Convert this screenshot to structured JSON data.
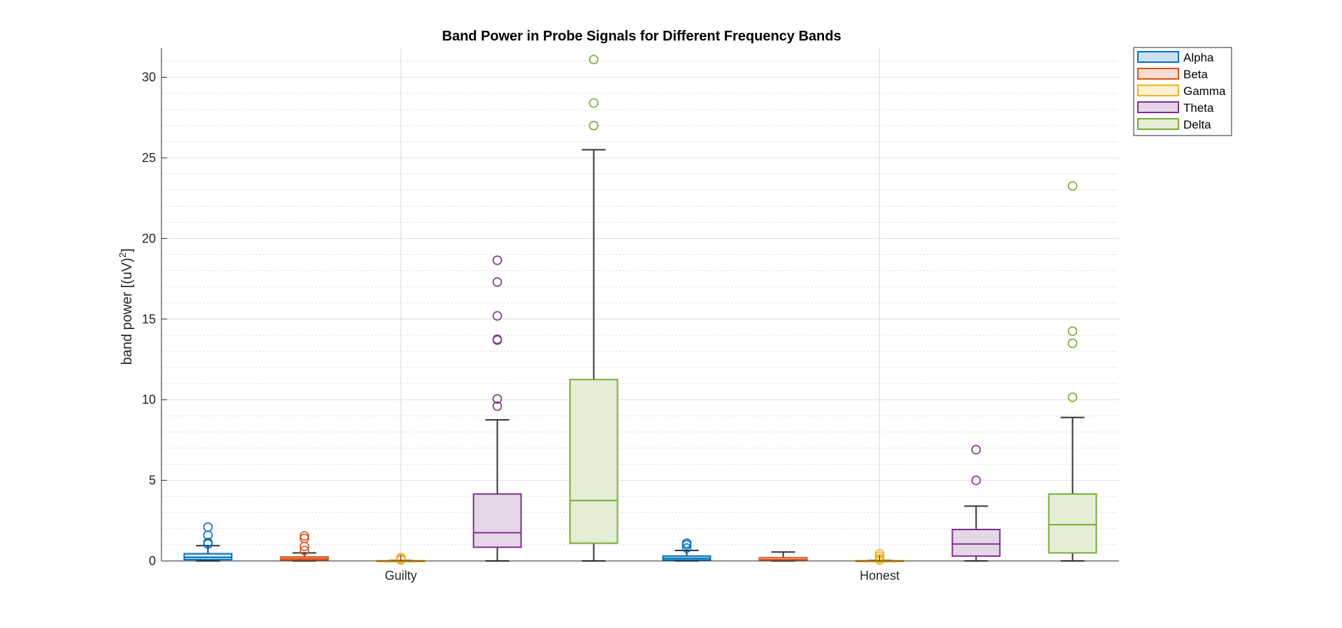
{
  "chart_data": {
    "type": "box",
    "title": "Band Power in Probe Signals for Different Frequency Bands",
    "xlabel": "",
    "ylabel": "band power [(uV)",
    "ylabel_superscript": "2",
    "ylabel_suffix": "]",
    "ylim": [
      0,
      31.8
    ],
    "yticks": [
      0,
      5,
      10,
      15,
      20,
      25,
      30
    ],
    "grid": true,
    "minor_grid": true,
    "legend_position": "top-right-outside",
    "groups": [
      "Guilty",
      "Honest"
    ],
    "series": [
      {
        "name": "Alpha",
        "color": "#0072BD",
        "fill": "#CCE0F1",
        "boxes": [
          {
            "group": "Guilty",
            "whisker_low": 0.0,
            "q1": 0.08,
            "median": 0.22,
            "q3": 0.45,
            "whisker_high": 0.95,
            "outliers": [
              1.05,
              1.15,
              1.6,
              2.1
            ]
          },
          {
            "group": "Honest",
            "whisker_low": 0.0,
            "q1": 0.06,
            "median": 0.16,
            "q3": 0.3,
            "whisker_high": 0.65,
            "outliers": [
              0.8,
              1.0,
              1.1
            ]
          }
        ]
      },
      {
        "name": "Beta",
        "color": "#D95319",
        "fill": "#F7DCD0",
        "boxes": [
          {
            "group": "Guilty",
            "whisker_low": 0.0,
            "q1": 0.06,
            "median": 0.14,
            "q3": 0.25,
            "whisker_high": 0.5,
            "outliers": [
              0.65,
              0.9,
              1.4,
              1.55
            ]
          },
          {
            "group": "Honest",
            "whisker_low": 0.0,
            "q1": 0.03,
            "median": 0.08,
            "q3": 0.2,
            "whisker_high": 0.55,
            "outliers": []
          }
        ]
      },
      {
        "name": "Gamma",
        "color": "#EDB120",
        "fill": "#FBEFD2",
        "boxes": [
          {
            "group": "Guilty",
            "whisker_low": 0.0,
            "q1": 0.0,
            "median": 0.01,
            "q3": 0.02,
            "whisker_high": 0.04,
            "outliers": [
              0.05,
              0.1,
              0.15,
              0.2
            ]
          },
          {
            "group": "Honest",
            "whisker_low": 0.0,
            "q1": 0.0,
            "median": 0.01,
            "q3": 0.02,
            "whisker_high": 0.04,
            "outliers": [
              0.05,
              0.15,
              0.3,
              0.45
            ]
          }
        ]
      },
      {
        "name": "Theta",
        "color": "#7E2F8E",
        "fill": "#E5D5E8",
        "boxes": [
          {
            "group": "Guilty",
            "whisker_low": 0.0,
            "q1": 0.85,
            "median": 1.75,
            "q3": 4.15,
            "whisker_high": 8.75,
            "outliers": [
              9.6,
              10.05,
              13.7,
              13.75,
              15.2,
              17.3,
              18.65
            ]
          },
          {
            "group": "Honest",
            "whisker_low": 0.0,
            "q1": 0.3,
            "median": 1.05,
            "q3": 1.95,
            "whisker_high": 3.4,
            "outliers": [
              5.0,
              6.9
            ]
          }
        ]
      },
      {
        "name": "Delta",
        "color": "#77AC30",
        "fill": "#E4EED6",
        "boxes": [
          {
            "group": "Guilty",
            "whisker_low": 0.0,
            "q1": 1.1,
            "median": 3.75,
            "q3": 11.25,
            "whisker_high": 25.5,
            "outliers": [
              27.0,
              28.4,
              31.1
            ]
          },
          {
            "group": "Honest",
            "whisker_low": 0.0,
            "q1": 0.5,
            "median": 2.25,
            "q3": 4.15,
            "whisker_high": 8.9,
            "outliers": [
              10.15,
              13.5,
              14.25,
              23.25
            ]
          }
        ]
      }
    ]
  }
}
